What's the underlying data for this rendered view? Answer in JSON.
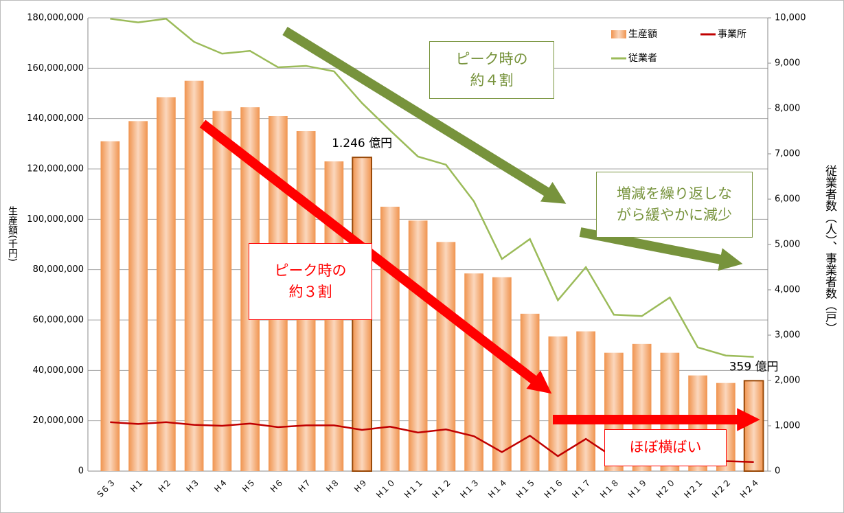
{
  "chart_data": {
    "type": "bar",
    "categories": [
      "S６３",
      "H１",
      "H２",
      "H３",
      "H４",
      "H５",
      "H６",
      "H７",
      "H８",
      "H９",
      "H１０",
      "H１１",
      "H１２",
      "H１３",
      "H１４",
      "H１５",
      "H１６",
      "H１７",
      "H１８",
      "H１９",
      "H２０",
      "H２１",
      "H２２",
      "H２４"
    ],
    "series": [
      {
        "name": "生産額",
        "type": "bar",
        "color": "#f0944f",
        "values": [
          131000000,
          139000000,
          148500000,
          155000000,
          143000000,
          144500000,
          141000000,
          135000000,
          123000000,
          124600000,
          105000000,
          99500000,
          91000000,
          78500000,
          77000000,
          62500000,
          53500000,
          55500000,
          47000000,
          50500000,
          47000000,
          38000000,
          35000000,
          35900000
        ],
        "value_labels": [
          null,
          null,
          null,
          null,
          null,
          null,
          null,
          null,
          null,
          "1.246 億円",
          null,
          null,
          null,
          null,
          null,
          null,
          null,
          null,
          null,
          null,
          null,
          null,
          null,
          "359 億円"
        ]
      },
      {
        "name": "事業所",
        "type": "line",
        "axis": "y2",
        "color": "#c00000",
        "values": [
          1080,
          1040,
          1080,
          1020,
          1000,
          1050,
          970,
          1010,
          1010,
          910,
          980,
          850,
          920,
          770,
          420,
          780,
          330,
          710,
          300,
          290,
          560,
          260,
          220,
          200
        ]
      },
      {
        "name": "従業者",
        "type": "line",
        "axis": "y2",
        "color": "#9bbb59",
        "values": [
          9980,
          9900,
          9980,
          9470,
          9210,
          9270,
          8910,
          8940,
          8820,
          8120,
          7520,
          6940,
          6760,
          5950,
          4680,
          5120,
          3770,
          4500,
          3450,
          3420,
          3830,
          2730,
          2550,
          2520
        ]
      }
    ],
    "ylabel": "生産額(千円)",
    "y2label": "従業者数（人）、事業者数（戸）",
    "ylim": [
      0,
      180000000
    ],
    "yticks": [
      0,
      {
        "value": 20000000,
        "label": "20,000,000"
      },
      {
        "value": 40000000,
        "label": "40,000,000"
      },
      {
        "value": 60000000,
        "label": "60,000,000"
      },
      {
        "value": 80000000,
        "label": "80,000,000"
      },
      {
        "value": 100000000,
        "label": "100,000,000"
      },
      {
        "value": 120000000,
        "label": "120,000,000"
      },
      {
        "value": 140000000,
        "label": "140,000,000"
      },
      {
        "value": 160000000,
        "label": "160,000,000"
      },
      {
        "value": 180000000,
        "label": "180,000,000"
      }
    ],
    "y2lim": [
      0,
      10000
    ],
    "y2ticks": [
      0,
      {
        "value": 1000,
        "label": "1,000"
      },
      {
        "value": 2000,
        "label": "2,000"
      },
      {
        "value": 3000,
        "label": "3,000"
      },
      {
        "value": 4000,
        "label": "4,000"
      },
      {
        "value": 5000,
        "label": "5,000"
      },
      {
        "value": 6000,
        "label": "6,000"
      },
      {
        "value": 7000,
        "label": "7,000"
      },
      {
        "value": 8000,
        "label": "8,000"
      },
      {
        "value": 9000,
        "label": "9,000"
      },
      {
        "value": 10000,
        "label": "10,000"
      }
    ],
    "grid": true,
    "legend": "top-right",
    "annotations": [
      {
        "lines": [
          "ピーク時の",
          "約４割"
        ],
        "color": "#77933c"
      },
      {
        "lines": [
          "増減を繰り返しな",
          "がら緩やかに減少"
        ],
        "color": "#77933c"
      },
      {
        "lines": [
          "ピーク時の",
          "約３割"
        ],
        "color": "#ff0000"
      },
      {
        "lines": [
          "ほぼ横ばい"
        ],
        "color": "#ff0000"
      }
    ]
  }
}
